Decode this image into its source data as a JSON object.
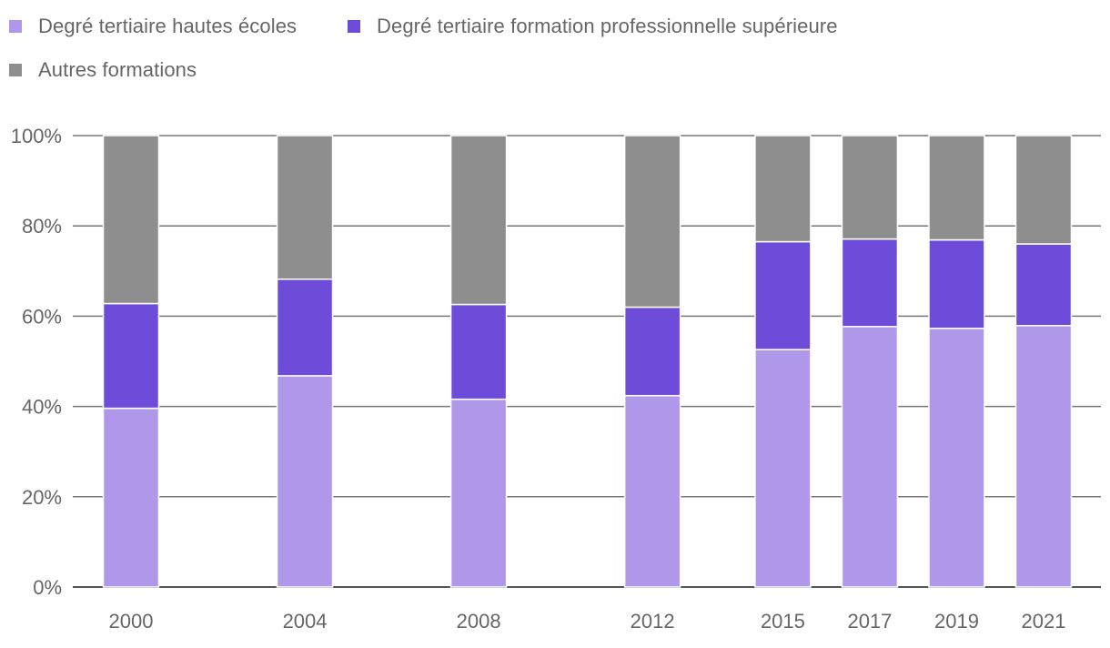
{
  "chart_data": {
    "type": "bar",
    "stacked": true,
    "categories": [
      "2000",
      "2004",
      "2008",
      "2012",
      "2015",
      "2017",
      "2019",
      "2021"
    ],
    "x_positions": [
      2000,
      2004,
      2008,
      2012,
      2015,
      2017,
      2019,
      2021
    ],
    "series": [
      {
        "name": "Degré tertiaire hautes écoles",
        "color": "#af97ea",
        "values": [
          39.6,
          46.8,
          41.6,
          42.4,
          52.6,
          57.7,
          57.3,
          57.9
        ]
      },
      {
        "name": "Degré tertiaire formation professionnelle supérieure",
        "color": "#6e4cda",
        "values": [
          23.2,
          21.4,
          21.0,
          19.6,
          23.9,
          19.4,
          19.6,
          18.1
        ]
      },
      {
        "name": "Autres formations",
        "color": "#8e8e8e",
        "values": [
          37.2,
          31.8,
          37.4,
          38.0,
          23.5,
          22.9,
          23.1,
          24.0
        ]
      }
    ],
    "yticks": [
      "0%",
      "20%",
      "40%",
      "60%",
      "80%",
      "100%"
    ],
    "ytick_values": [
      0,
      20,
      40,
      60,
      80,
      100
    ],
    "ylim": [
      0,
      100
    ],
    "title": "",
    "xlabel": "",
    "ylabel": "",
    "grid": true,
    "legend_position": "top-left"
  }
}
